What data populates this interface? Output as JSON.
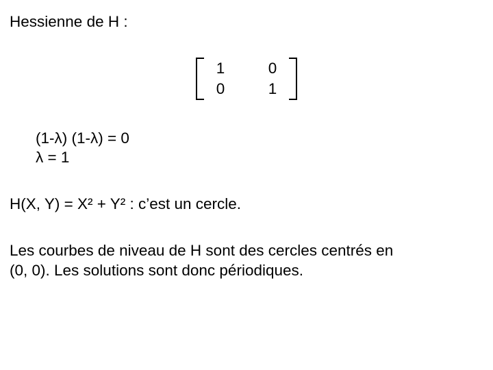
{
  "colors": {
    "background": "#ffffff",
    "text": "#000000",
    "bracket": "#000000"
  },
  "typography": {
    "font_family": "Verdana, Geneva, sans-serif",
    "base_fontsize_pt": 17
  },
  "title": "Hessienne de H :",
  "matrix": {
    "type": "matrix_2x2",
    "rows": [
      [
        "1",
        "0"
      ],
      [
        "0",
        "1"
      ]
    ]
  },
  "eigen": {
    "line1": "(1-λ) (1-λ) = 0",
    "line2": "λ = 1"
  },
  "statement": "H(X, Y) = X² + Y² : c’est un cercle.",
  "paragraph_l1": "Les courbes de niveau de H sont des cercles centrés en",
  "paragraph_l2": "(0, 0).  Les solutions sont donc périodiques."
}
